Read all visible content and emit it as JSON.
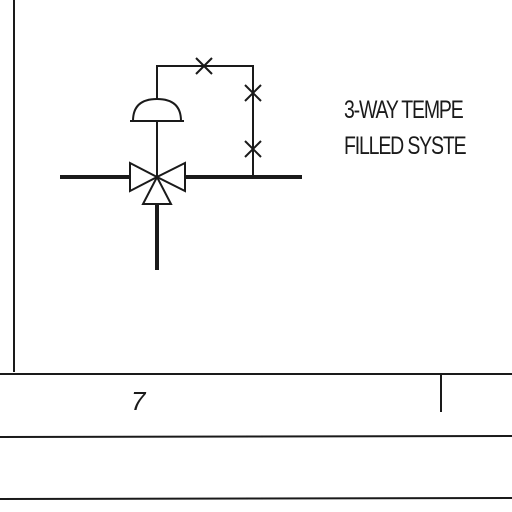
{
  "diagram": {
    "symbol": "three-way-temperature-valve",
    "label_lines": [
      "3-WAY TEMPE",
      "FILLED SYSTE"
    ]
  },
  "title_block": {
    "cell_number": "7"
  },
  "colors": {
    "ink": "#1a1a1a",
    "background": "#ffffff"
  }
}
